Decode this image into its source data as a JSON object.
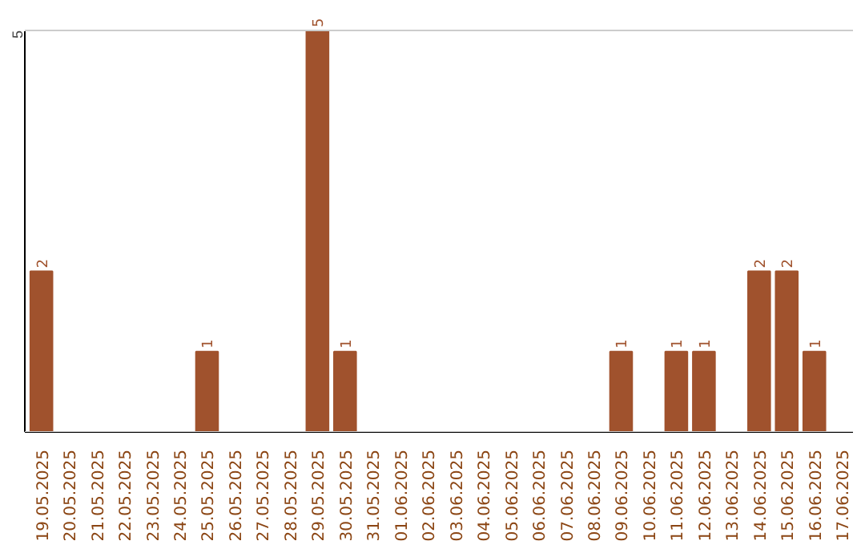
{
  "chart_data": {
    "type": "bar",
    "categories": [
      "19.05.2025",
      "20.05.2025",
      "21.05.2025",
      "22.05.2025",
      "23.05.2025",
      "24.05.2025",
      "25.05.2025",
      "26.05.2025",
      "27.05.2025",
      "28.05.2025",
      "29.05.2025",
      "30.05.2025",
      "31.05.2025",
      "01.06.2025",
      "02.06.2025",
      "03.06.2025",
      "04.06.2025",
      "05.06.2025",
      "06.06.2025",
      "07.06.2025",
      "08.06.2025",
      "09.06.2025",
      "10.06.2025",
      "11.06.2025",
      "12.06.2025",
      "13.06.2025",
      "14.06.2025",
      "15.06.2025",
      "16.06.2025",
      "17.06.2025"
    ],
    "values": [
      2,
      0,
      0,
      0,
      0,
      0,
      1,
      0,
      0,
      0,
      5,
      1,
      0,
      0,
      0,
      0,
      0,
      0,
      0,
      0,
      0,
      1,
      0,
      1,
      1,
      0,
      2,
      2,
      1,
      0
    ],
    "value_labels": [
      "2",
      null,
      null,
      null,
      null,
      null,
      "1",
      null,
      null,
      null,
      "5",
      "1",
      null,
      null,
      null,
      null,
      null,
      null,
      null,
      null,
      null,
      "1",
      null,
      "1",
      "1",
      null,
      "2",
      "2",
      "1",
      null
    ],
    "color": "#a0522d",
    "ylim": [
      0,
      5
    ],
    "yticks": [
      {
        "value": 0,
        "label": null
      },
      5
    ],
    "grid": "y"
  }
}
